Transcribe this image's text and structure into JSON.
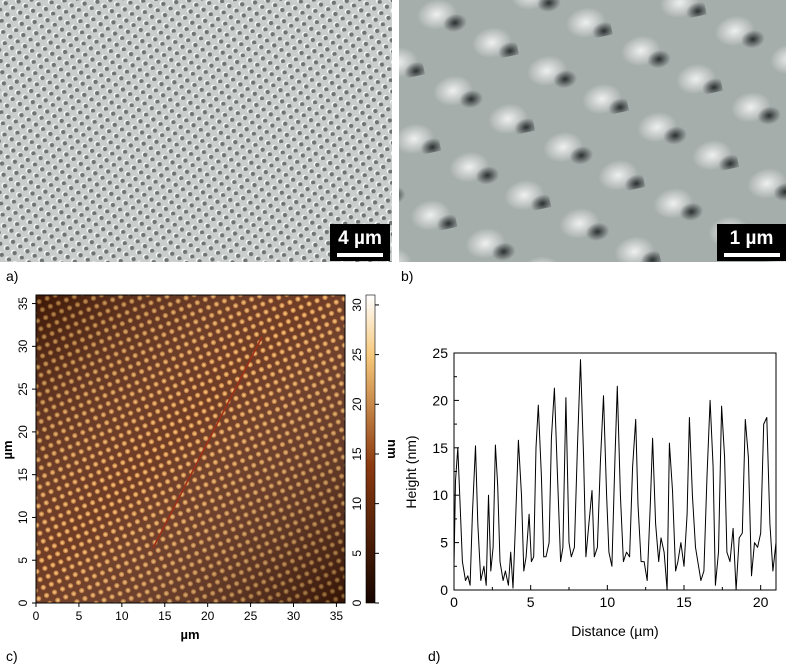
{
  "panel_labels": {
    "a": "a)",
    "b": "b)",
    "c": "c)",
    "d": "d)"
  },
  "panel_a": {
    "scale_bar": "4 µm"
  },
  "panel_b": {
    "scale_bar": "1 µm"
  },
  "panel_c": {
    "x_axis_label": "µm",
    "y_axis_label": "µm",
    "colorbar_label": "nm",
    "x_ticks": [
      "0",
      "5",
      "10",
      "15",
      "20",
      "25",
      "30",
      "35"
    ],
    "y_ticks": [
      "0",
      "5",
      "10",
      "15",
      "20",
      "25",
      "30",
      "35"
    ],
    "colorbar_ticks": [
      "0",
      "5",
      "10",
      "15",
      "20",
      "25",
      "30"
    ],
    "colors": {
      "dark": "#150500",
      "mid": "#8c3a10",
      "bright": "#f6c778",
      "top": "#ffffff"
    }
  },
  "chart_data": {
    "type": "line",
    "title": "",
    "xlabel": "Distance (µm)",
    "ylabel": "Height (nm)",
    "xlim": [
      0,
      21
    ],
    "ylim": [
      0,
      25
    ],
    "xticks": [
      0,
      5,
      10,
      15,
      20
    ],
    "yticks": [
      0,
      5,
      10,
      15,
      20,
      25
    ],
    "grid": false,
    "series": [
      {
        "color": "#000000",
        "x": [
          0,
          0.1,
          0.25,
          0.4,
          0.55,
          0.75,
          0.9,
          1.05,
          1.2,
          1.4,
          1.55,
          1.75,
          1.95,
          2.1,
          2.25,
          2.4,
          2.55,
          2.7,
          2.85,
          3.0,
          3.2,
          3.35,
          3.55,
          3.7,
          3.85,
          4.0,
          4.2,
          4.4,
          4.55,
          4.7,
          4.9,
          5.05,
          5.2,
          5.35,
          5.5,
          5.7,
          5.85,
          6.0,
          6.2,
          6.35,
          6.55,
          6.75,
          6.95,
          7.1,
          7.3,
          7.5,
          7.65,
          7.85,
          8.05,
          8.25,
          8.45,
          8.6,
          8.8,
          9.0,
          9.15,
          9.35,
          9.55,
          9.75,
          9.95,
          10.1,
          10.3,
          10.5,
          10.65,
          10.85,
          11.05,
          11.25,
          11.45,
          11.65,
          11.85,
          12.0,
          12.2,
          12.4,
          12.6,
          12.8,
          12.95,
          13.15,
          13.35,
          13.5,
          13.7,
          13.9,
          14.05,
          14.25,
          14.45,
          14.6,
          14.8,
          15.0,
          15.2,
          15.35,
          15.55,
          15.75,
          15.9,
          16.1,
          16.3,
          16.5,
          16.7,
          16.9,
          17.05,
          17.25,
          17.45,
          17.65,
          17.8,
          18.0,
          18.2,
          18.4,
          18.6,
          18.8,
          19.0,
          19.2,
          19.4,
          19.6,
          19.8,
          20.0,
          20.2,
          20.4,
          20.6,
          20.8,
          21.0
        ],
        "y": [
          2.5,
          11.5,
          15.0,
          9.0,
          3.0,
          1.0,
          1.5,
          0.5,
          8.0,
          15.2,
          7.0,
          1.0,
          2.5,
          0.5,
          10.0,
          2.0,
          4.5,
          15.3,
          11.0,
          3.0,
          1.0,
          2.0,
          0.5,
          4.0,
          0.2,
          6.5,
          15.8,
          10.0,
          2.0,
          3.5,
          8.0,
          3.0,
          3.5,
          15.0,
          19.5,
          12.0,
          3.5,
          3.5,
          5.0,
          16.0,
          21.3,
          12.0,
          3.0,
          4.5,
          20.3,
          5.0,
          3.5,
          4.5,
          15.0,
          24.3,
          14.0,
          3.5,
          7.0,
          10.5,
          3.5,
          4.5,
          13.5,
          20.5,
          10.0,
          4.0,
          2.5,
          14.0,
          21.5,
          10.0,
          3.0,
          4.0,
          3.5,
          13.0,
          18.0,
          9.0,
          3.0,
          3.0,
          1.0,
          9.0,
          16.0,
          7.0,
          3.0,
          5.5,
          4.0,
          0.0,
          15.5,
          10.5,
          2.0,
          3.0,
          5.0,
          2.5,
          8.0,
          18.2,
          10.0,
          4.5,
          3.0,
          1.0,
          2.0,
          12.0,
          20.0,
          13.0,
          0.5,
          4.0,
          19.4,
          14.0,
          4.0,
          3.0,
          6.5,
          0.0,
          5.5,
          6.0,
          18.0,
          14.0,
          1.5,
          5.0,
          4.5,
          6.0,
          17.5,
          18.2,
          7.0,
          2.0,
          5.0
        ]
      }
    ]
  }
}
